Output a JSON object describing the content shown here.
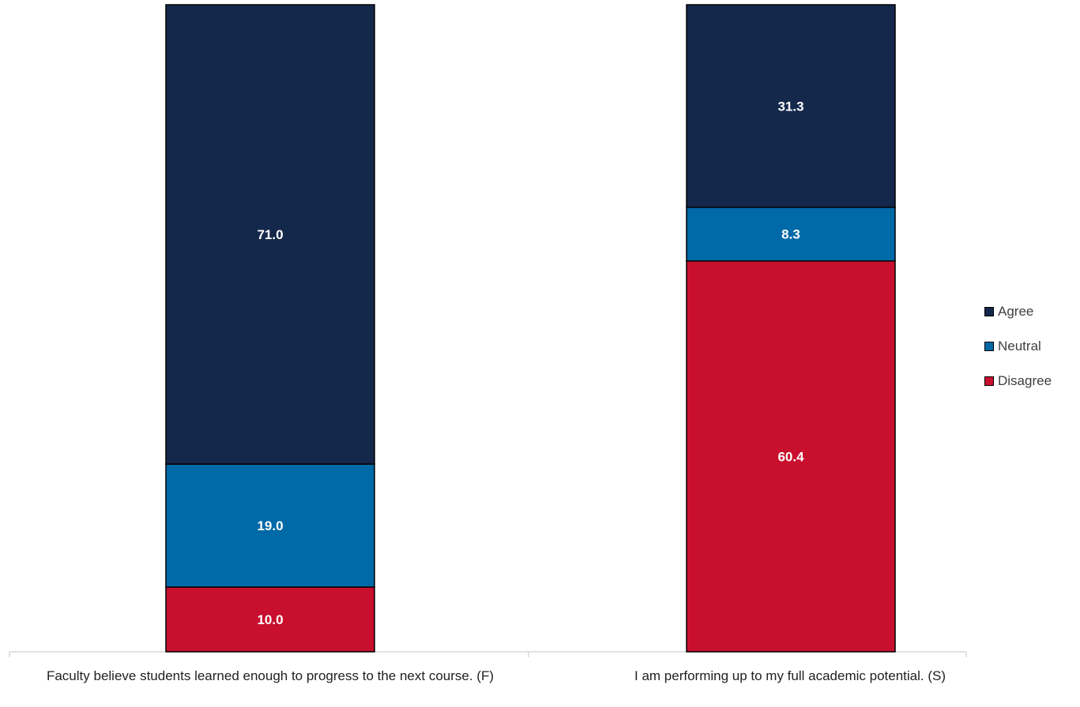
{
  "chart_data": {
    "type": "bar",
    "stacked": true,
    "percent": true,
    "categories": [
      "Faculty believe students learned enough to progress to the next course. (F)",
      "I am performing up to my full academic potential. (S)"
    ],
    "series": [
      {
        "name": "Disagree",
        "color": "#C8102E",
        "values": [
          10.0,
          60.4
        ]
      },
      {
        "name": "Neutral",
        "color": "#0069A8",
        "values": [
          19.0,
          8.3
        ]
      },
      {
        "name": "Agree",
        "color": "#14284B",
        "values": [
          71.0,
          31.3
        ]
      }
    ],
    "legend": {
      "position": "right",
      "order": [
        "Agree",
        "Neutral",
        "Disagree"
      ]
    },
    "ylim": [
      0,
      100
    ],
    "grid": false,
    "data_labels": [
      "10.0",
      "19.0",
      "71.0",
      "60.4",
      "8.3",
      "31.3"
    ]
  }
}
